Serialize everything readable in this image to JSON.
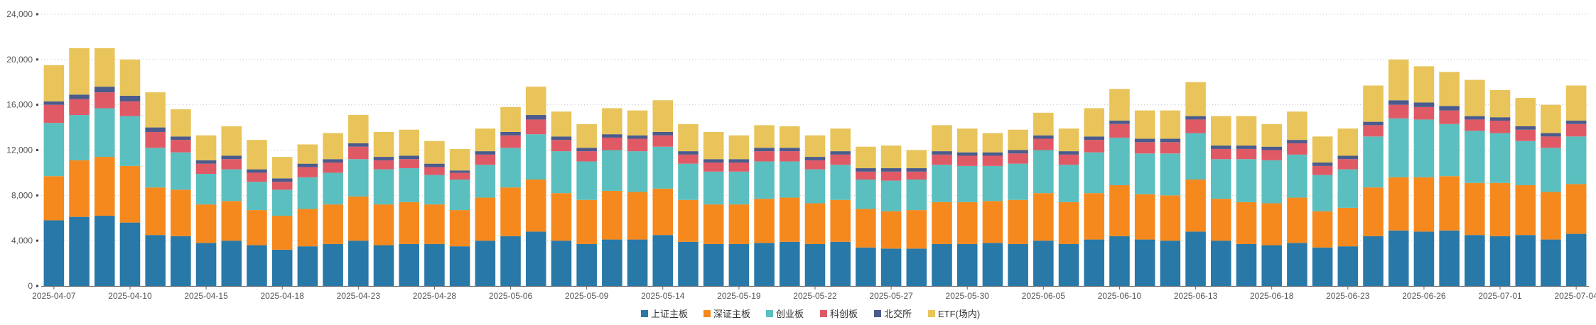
{
  "chart_data": {
    "type": "bar",
    "stacked": true,
    "title": "",
    "xlabel": "",
    "ylabel": "",
    "ylim": [
      0,
      24000
    ],
    "yticks": [
      0,
      4000,
      8000,
      12000,
      16000,
      20000,
      24000
    ],
    "ytick_labels": [
      "0",
      "4,000",
      "8,000",
      "12,000",
      "16,000",
      "20,000",
      "24,000"
    ],
    "grid": "horizontal-dotted",
    "legend_position": "bottom-center",
    "categories": [
      "2025-04-07",
      "2025-04-08",
      "2025-04-09",
      "2025-04-10",
      "2025-04-11",
      "2025-04-14",
      "2025-04-15",
      "2025-04-16",
      "2025-04-17",
      "2025-04-18",
      "2025-04-21",
      "2025-04-22",
      "2025-04-23",
      "2025-04-24",
      "2025-04-25",
      "2025-04-28",
      "2025-04-29",
      "2025-04-30",
      "2025-05-06",
      "2025-05-07",
      "2025-05-08",
      "2025-05-09",
      "2025-05-12",
      "2025-05-13",
      "2025-05-14",
      "2025-05-15",
      "2025-05-16",
      "2025-05-19",
      "2025-05-20",
      "2025-05-21",
      "2025-05-22",
      "2025-05-23",
      "2025-05-26",
      "2025-05-27",
      "2025-05-28",
      "2025-05-29",
      "2025-05-30",
      "2025-06-03",
      "2025-06-04",
      "2025-06-05",
      "2025-06-06",
      "2025-06-09",
      "2025-06-10",
      "2025-06-11",
      "2025-06-12",
      "2025-06-13",
      "2025-06-16",
      "2025-06-17",
      "2025-06-18",
      "2025-06-19",
      "2025-06-20",
      "2025-06-23",
      "2025-06-24",
      "2025-06-25",
      "2025-06-26",
      "2025-06-27",
      "2025-06-30",
      "2025-07-01",
      "2025-07-02",
      "2025-07-03",
      "2025-07-04"
    ],
    "x_tick_labels": [
      {
        "index": 0,
        "label": "2025-04-07"
      },
      {
        "index": 3,
        "label": "2025-04-10"
      },
      {
        "index": 6,
        "label": "2025-04-15"
      },
      {
        "index": 9,
        "label": "2025-04-18"
      },
      {
        "index": 12,
        "label": "2025-04-23"
      },
      {
        "index": 15,
        "label": "2025-04-28"
      },
      {
        "index": 18,
        "label": "2025-05-06"
      },
      {
        "index": 21,
        "label": "2025-05-09"
      },
      {
        "index": 24,
        "label": "2025-05-14"
      },
      {
        "index": 27,
        "label": "2025-05-19"
      },
      {
        "index": 30,
        "label": "2025-05-22"
      },
      {
        "index": 33,
        "label": "2025-05-27"
      },
      {
        "index": 36,
        "label": "2025-05-30"
      },
      {
        "index": 39,
        "label": "2025-06-05"
      },
      {
        "index": 42,
        "label": "2025-06-10"
      },
      {
        "index": 45,
        "label": "2025-06-13"
      },
      {
        "index": 48,
        "label": "2025-06-18"
      },
      {
        "index": 51,
        "label": "2025-06-23"
      },
      {
        "index": 54,
        "label": "2025-06-26"
      },
      {
        "index": 57,
        "label": "2025-07-01"
      },
      {
        "index": 60,
        "label": "2025-07-04"
      }
    ],
    "series": [
      {
        "name": "上证主板",
        "color": "#2878a8",
        "values": [
          5800,
          6100,
          6200,
          5600,
          4500,
          4400,
          3800,
          4000,
          3600,
          3200,
          3500,
          3700,
          4000,
          3600,
          3700,
          3700,
          3500,
          4000,
          4400,
          4800,
          4000,
          3700,
          4100,
          4100,
          4500,
          3900,
          3700,
          3700,
          3800,
          3900,
          3700,
          3900,
          3400,
          3300,
          3300,
          3700,
          3700,
          3800,
          3700,
          4000,
          3700,
          4100,
          4400,
          4100,
          4000,
          4800,
          4000,
          3700,
          3600,
          3800,
          3400,
          3500,
          4400,
          4900,
          4800,
          4900,
          4500,
          4400,
          4500,
          4100,
          4600
        ]
      },
      {
        "name": "深证主板",
        "color": "#f5891e",
        "values": [
          3900,
          5000,
          5200,
          5000,
          4200,
          4100,
          3400,
          3500,
          3100,
          3000,
          3300,
          3500,
          3900,
          3600,
          3700,
          3500,
          3200,
          3800,
          4300,
          4600,
          4200,
          3900,
          4300,
          4200,
          4100,
          3700,
          3500,
          3500,
          3900,
          3900,
          3600,
          3700,
          3400,
          3300,
          3400,
          3700,
          3700,
          3700,
          3900,
          4200,
          3700,
          4100,
          4500,
          4000,
          4000,
          4600,
          3700,
          3700,
          3700,
          4000,
          3200,
          3400,
          4300,
          4700,
          4800,
          4800,
          4600,
          4700,
          4400,
          4200,
          4400
        ]
      },
      {
        "name": "创业板",
        "color": "#5bbfbf",
        "values": [
          4700,
          4000,
          4300,
          4400,
          3500,
          3300,
          2700,
          2800,
          2500,
          2300,
          2800,
          2800,
          3300,
          3100,
          3000,
          2600,
          2700,
          2900,
          3500,
          4000,
          3700,
          3400,
          3600,
          3600,
          3700,
          3200,
          2900,
          2900,
          3300,
          3200,
          3000,
          3100,
          2600,
          2700,
          2700,
          3300,
          3200,
          3100,
          3200,
          3800,
          3300,
          3600,
          4200,
          3600,
          3700,
          4100,
          3500,
          3800,
          3800,
          3800,
          3200,
          3400,
          4500,
          5200,
          5100,
          4600,
          4600,
          4400,
          3900,
          3900,
          4200
        ]
      },
      {
        "name": "科创板",
        "color": "#e05a66",
        "values": [
          1600,
          1400,
          1400,
          1300,
          1400,
          1100,
          900,
          900,
          800,
          700,
          900,
          900,
          1100,
          800,
          800,
          700,
          600,
          900,
          1100,
          1300,
          1000,
          900,
          1100,
          1100,
          1000,
          800,
          800,
          800,
          900,
          900,
          800,
          900,
          700,
          800,
          700,
          900,
          900,
          900,
          900,
          1000,
          900,
          1100,
          1200,
          1000,
          1000,
          1200,
          900,
          900,
          900,
          1000,
          800,
          900,
          1000,
          1200,
          1100,
          1200,
          1000,
          1100,
          1000,
          1000,
          1100
        ]
      },
      {
        "name": "北交所",
        "color": "#4a5b8c",
        "values": [
          300,
          400,
          500,
          500,
          400,
          300,
          300,
          300,
          300,
          300,
          300,
          300,
          300,
          300,
          300,
          300,
          200,
          300,
          300,
          400,
          300,
          300,
          300,
          300,
          300,
          300,
          300,
          300,
          300,
          300,
          300,
          300,
          300,
          300,
          300,
          300,
          300,
          300,
          300,
          300,
          300,
          300,
          300,
          300,
          300,
          300,
          300,
          300,
          300,
          300,
          300,
          300,
          300,
          400,
          400,
          400,
          300,
          300,
          300,
          300,
          300
        ]
      },
      {
        "name": "ETF(场内)",
        "color": "#e8c45a",
        "values": [
          3200,
          4100,
          3400,
          3200,
          3100,
          2400,
          2200,
          2600,
          2600,
          1900,
          1700,
          2300,
          2500,
          2200,
          2300,
          2000,
          1900,
          2000,
          2200,
          2500,
          2200,
          2100,
          2300,
          2200,
          2800,
          2400,
          2400,
          2100,
          2000,
          1900,
          1900,
          2000,
          1900,
          2000,
          1600,
          2300,
          2100,
          1700,
          1800,
          2000,
          2000,
          2500,
          2800,
          2500,
          2500,
          3000,
          2600,
          2600,
          2000,
          2500,
          2300,
          2400,
          3200,
          3600,
          3200,
          3000,
          3200,
          2400,
          2500,
          2500,
          3100
        ]
      }
    ]
  }
}
